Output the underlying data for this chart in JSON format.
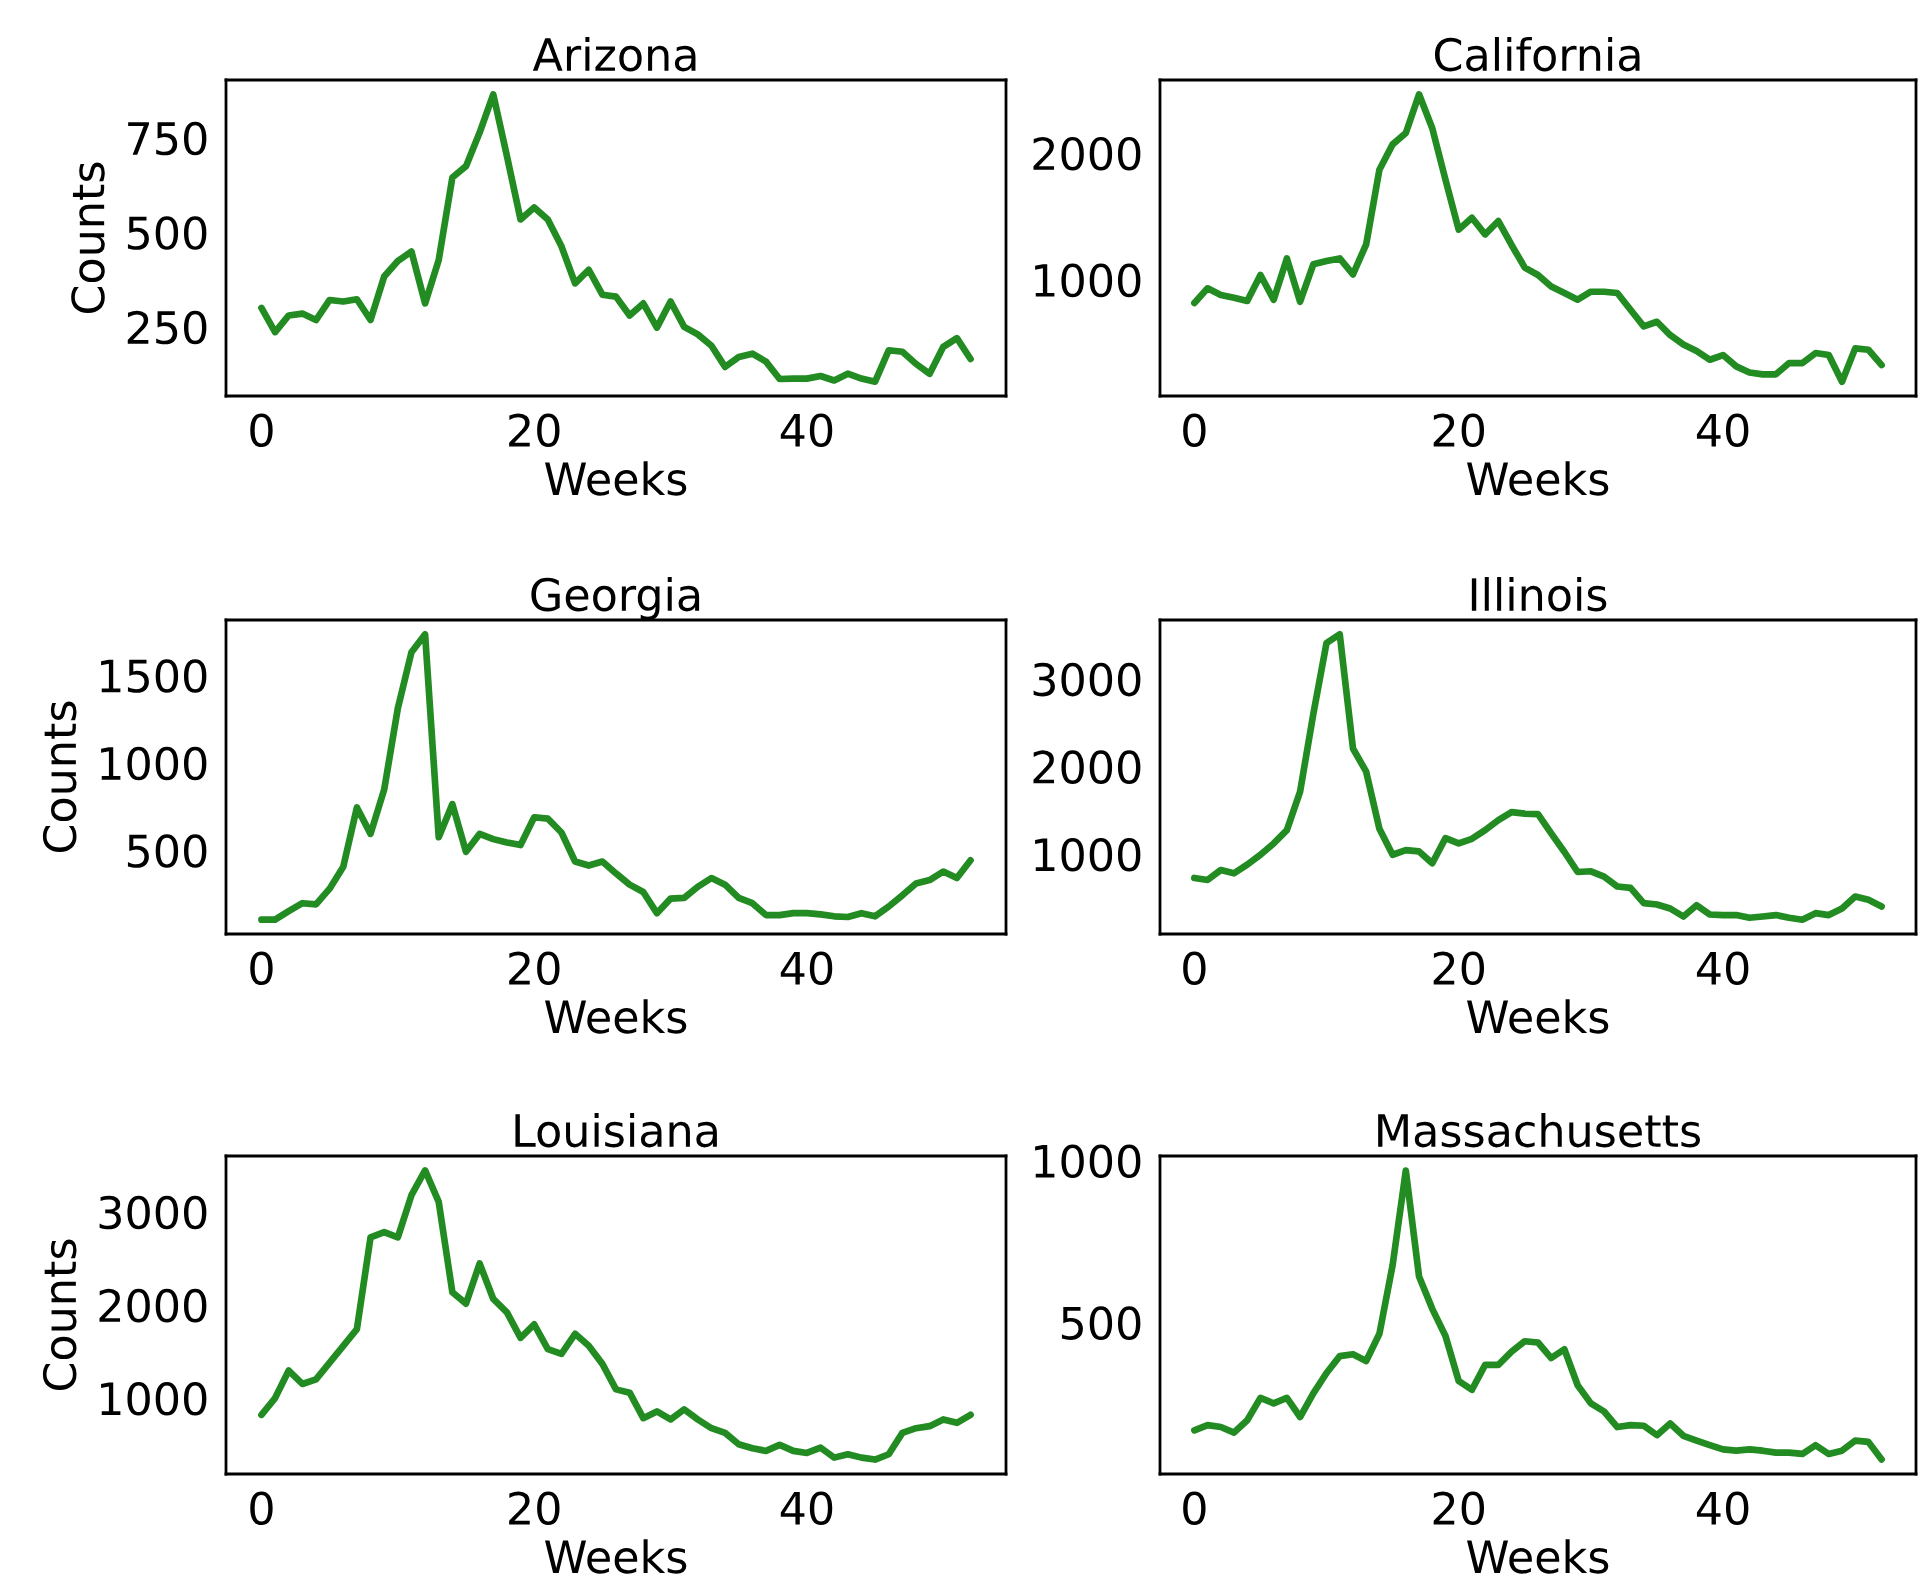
{
  "chart_data": [
    {
      "type": "line",
      "title": "Arizona",
      "xlabel": "Weeks",
      "ylabel": "Counts",
      "color": "#228b22",
      "xlim": [
        -2.6,
        54.6
      ],
      "xticks": [
        0,
        20,
        40
      ],
      "ylim": [
        67,
        903
      ],
      "yticks": [
        250,
        500,
        750
      ],
      "grid": false,
      "legend": false,
      "x": [
        0,
        1,
        2,
        3,
        4,
        5,
        6,
        7,
        8,
        9,
        10,
        11,
        12,
        13,
        14,
        15,
        16,
        17,
        18,
        19,
        20,
        21,
        22,
        23,
        24,
        25,
        26,
        27,
        28,
        29,
        30,
        31,
        32,
        33,
        34,
        35,
        36,
        37,
        38,
        39,
        40,
        41,
        42,
        43,
        44,
        45,
        46,
        47,
        48,
        49,
        50,
        51,
        52
      ],
      "values": [
        300,
        236,
        280,
        285,
        268,
        321,
        317,
        323,
        268,
        383,
        424,
        449,
        312,
        427,
        645,
        675,
        764,
        865,
        702,
        534,
        566,
        534,
        463,
        365,
        401,
        335,
        330,
        280,
        312,
        248,
        317,
        250,
        230,
        200,
        144,
        170,
        179,
        158,
        112,
        113,
        113,
        120,
        108,
        126,
        113,
        105,
        188,
        184,
        152,
        126,
        197,
        220,
        165
      ]
    },
    {
      "type": "line",
      "title": "California",
      "xlabel": "Weeks",
      "color": "#228b22",
      "xlim": [
        -2.6,
        54.6
      ],
      "xticks": [
        0,
        20,
        40
      ],
      "ylim": [
        82,
        2576
      ],
      "yticks": [
        1000,
        2000
      ],
      "grid": false,
      "legend": false,
      "x": [
        0,
        1,
        2,
        3,
        4,
        5,
        6,
        7,
        8,
        9,
        10,
        11,
        12,
        13,
        14,
        15,
        16,
        17,
        18,
        19,
        20,
        21,
        22,
        23,
        24,
        25,
        26,
        27,
        28,
        29,
        30,
        31,
        32,
        33,
        34,
        35,
        36,
        37,
        38,
        39,
        40,
        41,
        42,
        43,
        44,
        45,
        46,
        47,
        48,
        49,
        50,
        51,
        52
      ],
      "values": [
        816,
        932,
        879,
        858,
        832,
        1037,
        842,
        1168,
        826,
        1121,
        1147,
        1168,
        1042,
        1279,
        1868,
        2068,
        2158,
        2463,
        2195,
        1789,
        1395,
        1489,
        1358,
        1463,
        1274,
        1095,
        1037,
        947,
        895,
        842,
        905,
        905,
        895,
        763,
        632,
        668,
        563,
        489,
        437,
        368,
        405,
        316,
        268,
        253,
        253,
        342,
        342,
        421,
        405,
        195,
        458,
        447,
        326
      ]
    },
    {
      "type": "line",
      "title": "Georgia",
      "xlabel": "Weeks",
      "ylabel": "Counts",
      "color": "#228b22",
      "xlim": [
        -2.6,
        54.6
      ],
      "xticks": [
        0,
        20,
        40
      ],
      "ylim": [
        22,
        1816
      ],
      "yticks": [
        500,
        1000,
        1500
      ],
      "grid": false,
      "legend": false,
      "x": [
        0,
        1,
        2,
        3,
        4,
        5,
        6,
        7,
        8,
        9,
        10,
        11,
        12,
        13,
        14,
        15,
        16,
        17,
        18,
        19,
        20,
        21,
        22,
        23,
        24,
        25,
        26,
        27,
        28,
        29,
        30,
        31,
        32,
        33,
        34,
        35,
        36,
        37,
        38,
        39,
        40,
        41,
        42,
        43,
        44,
        45,
        46,
        47,
        48,
        49,
        50,
        51,
        52
      ],
      "values": [
        104,
        104,
        153,
        198,
        191,
        281,
        406,
        745,
        594,
        847,
        1311,
        1632,
        1734,
        575,
        764,
        492,
        594,
        564,
        545,
        530,
        689,
        681,
        602,
        436,
        413,
        436,
        368,
        304,
        262,
        141,
        224,
        228,
        292,
        342,
        304,
        228,
        198,
        130,
        130,
        141,
        141,
        134,
        123,
        119,
        141,
        123,
        179,
        243,
        311,
        330,
        379,
        342,
        443
      ]
    },
    {
      "type": "line",
      "title": "Illinois",
      "xlabel": "Weeks",
      "color": "#228b22",
      "xlim": [
        -2.6,
        54.6
      ],
      "xticks": [
        0,
        20,
        40
      ],
      "ylim": [
        87,
        3672
      ],
      "yticks": [
        1000,
        2000,
        3000
      ],
      "grid": false,
      "legend": false,
      "x": [
        0,
        1,
        2,
        3,
        4,
        5,
        6,
        7,
        8,
        9,
        10,
        11,
        12,
        13,
        14,
        15,
        16,
        17,
        18,
        19,
        20,
        21,
        22,
        23,
        24,
        25,
        26,
        27,
        28,
        29,
        30,
        31,
        32,
        33,
        34,
        35,
        36,
        37,
        38,
        39,
        40,
        41,
        42,
        43,
        44,
        45,
        46,
        47,
        48,
        49,
        50,
        51,
        52
      ],
      "values": [
        727,
        704,
        818,
        780,
        879,
        992,
        1121,
        1273,
        1713,
        2599,
        3410,
        3509,
        2205,
        1940,
        1288,
        992,
        1045,
        1030,
        894,
        1182,
        1121,
        1174,
        1273,
        1387,
        1478,
        1462,
        1455,
        1235,
        1023,
        795,
        803,
        742,
        629,
        613,
        439,
        424,
        378,
        287,
        416,
        310,
        303,
        303,
        272,
        287,
        303,
        272,
        250,
        325,
        303,
        378,
        515,
        477,
        401
      ]
    },
    {
      "type": "line",
      "title": "Louisiana",
      "xlabel": "Weeks",
      "ylabel": "Counts",
      "color": "#228b22",
      "xlim": [
        -2.6,
        54.6
      ],
      "xticks": [
        0,
        20,
        40
      ],
      "ylim": [
        184,
        3600
      ],
      "yticks": [
        1000,
        2000,
        3000
      ],
      "grid": false,
      "legend": false,
      "x": [
        0,
        1,
        2,
        3,
        4,
        5,
        6,
        7,
        8,
        9,
        10,
        11,
        12,
        13,
        14,
        15,
        16,
        17,
        18,
        19,
        20,
        21,
        22,
        23,
        24,
        25,
        26,
        27,
        28,
        29,
        30,
        31,
        32,
        33,
        34,
        35,
        36,
        37,
        38,
        39,
        40,
        41,
        42,
        43,
        44,
        45,
        46,
        47,
        48,
        49,
        50,
        51,
        52
      ],
      "values": [
        820,
        1000,
        1295,
        1151,
        1201,
        1381,
        1561,
        1741,
        2726,
        2783,
        2726,
        3179,
        3445,
        3107,
        2136,
        2014,
        2445,
        2064,
        1920,
        1647,
        1791,
        1525,
        1475,
        1690,
        1561,
        1367,
        1093,
        1058,
        784,
        856,
        770,
        878,
        770,
        676,
        626,
        504,
        461,
        432,
        497,
        432,
        410,
        468,
        360,
        396,
        360,
        339,
        396,
        626,
        676,
        698,
        770,
        734,
        820
      ]
    },
    {
      "type": "line",
      "title": "Massachusetts",
      "xlabel": "Weeks",
      "color": "#228b22",
      "xlim": [
        -2.6,
        54.6
      ],
      "xticks": [
        0,
        20,
        40
      ],
      "ylim": [
        32,
        1014
      ],
      "yticks": [
        500,
        1000
      ],
      "grid": false,
      "legend": false,
      "x": [
        0,
        1,
        2,
        3,
        4,
        5,
        6,
        7,
        8,
        9,
        10,
        11,
        12,
        13,
        14,
        15,
        16,
        17,
        18,
        19,
        20,
        21,
        22,
        23,
        24,
        25,
        26,
        27,
        28,
        29,
        30,
        31,
        32,
        33,
        34,
        35,
        36,
        37,
        38,
        39,
        40,
        41,
        42,
        43,
        44,
        45,
        46,
        47,
        48,
        49,
        50,
        51,
        52
      ],
      "values": [
        167,
        183,
        177,
        160,
        198,
        267,
        250,
        267,
        208,
        281,
        344,
        396,
        402,
        381,
        465,
        677,
        969,
        642,
        542,
        458,
        319,
        292,
        369,
        369,
        410,
        442,
        438,
        390,
        417,
        306,
        250,
        225,
        177,
        183,
        181,
        152,
        188,
        150,
        135,
        121,
        108,
        104,
        108,
        104,
        98,
        98,
        94,
        121,
        94,
        104,
        135,
        131,
        77
      ]
    }
  ]
}
